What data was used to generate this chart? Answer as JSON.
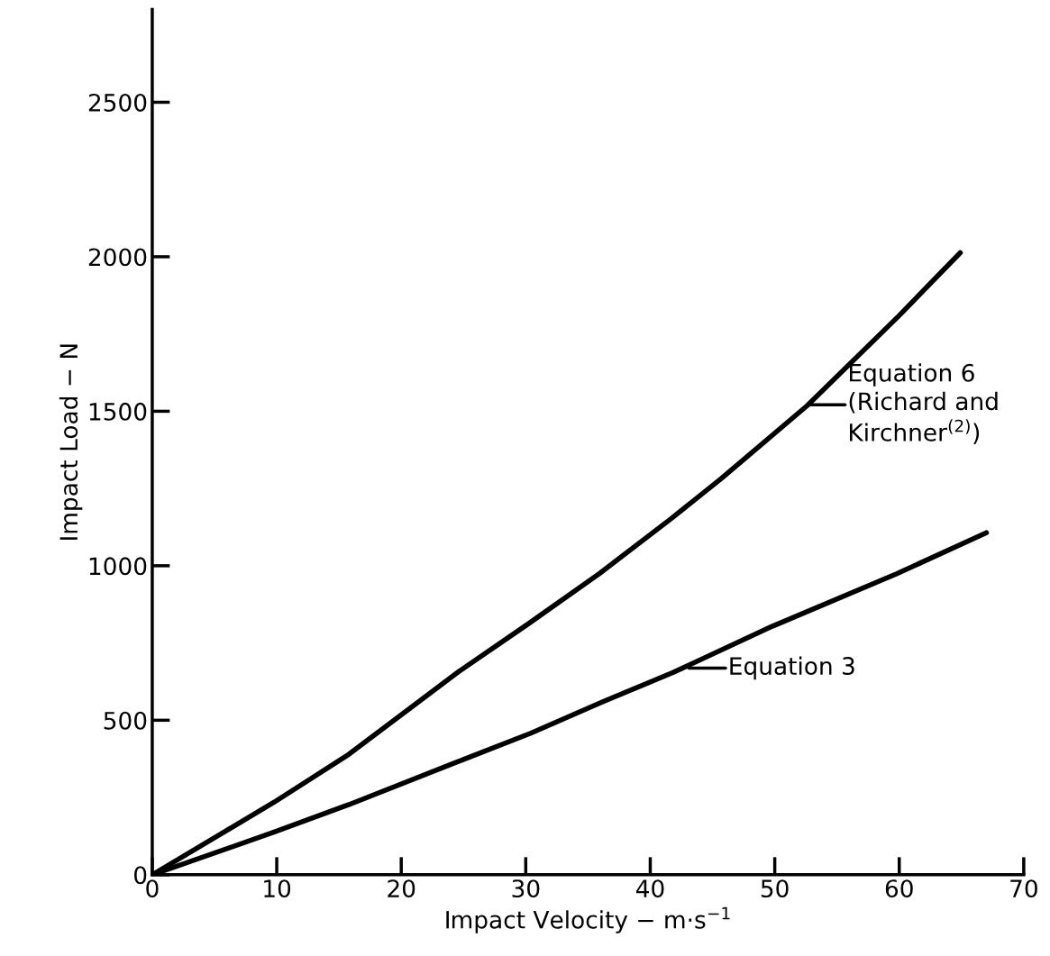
{
  "chart_data": {
    "type": "line",
    "xlabel": "Impact Velocity − m·s$^{−1}$",
    "ylabel": "Impact Load − N",
    "xlim": [
      0,
      70
    ],
    "ylim": [
      0,
      2800
    ],
    "xticks": [
      0,
      10,
      20,
      30,
      40,
      50,
      60,
      70
    ],
    "yticks": [
      0,
      500,
      1000,
      1500,
      2000,
      2500
    ],
    "grid": false,
    "legend": false,
    "marker": "none",
    "line_style": "solid",
    "series": [
      {
        "color": "#000000",
        "x": [
          0,
          9.8,
          15.8,
          24.6,
          30.2,
          35.9,
          41.7,
          45.7,
          52.6,
          60.0,
          64.9
        ],
        "values": [
          0,
          235,
          390,
          657,
          812,
          974,
          1153,
          1282,
          1518,
          1810,
          2013
        ]
      },
      {
        "color": "#000000",
        "x": [
          0,
          9.8,
          15.8,
          25.0,
          30.4,
          36.2,
          41.8,
          49.8,
          59.8,
          67.0
        ],
        "values": [
          0,
          138,
          227,
          373,
          458,
          560,
          654,
          804,
          974,
          1107
        ]
      }
    ],
    "annotations": [
      {
        "text": "Equation 6\n(Richard and\nKirchner$^{(2)}$)",
        "x": 52.7,
        "y": 1521
      },
      {
        "text": "Equation 3",
        "x": 43.1,
        "y": 669
      }
    ]
  }
}
